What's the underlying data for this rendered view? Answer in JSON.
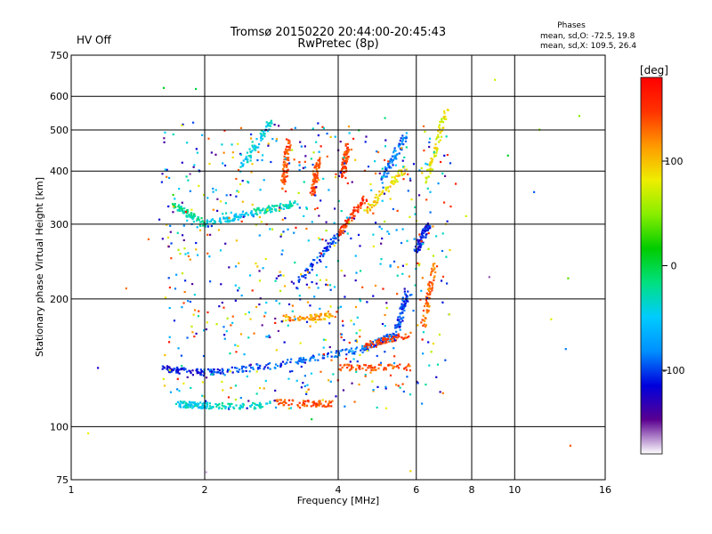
{
  "header": {
    "status": "HV Off",
    "title_line1": "Tromsø 20150220 20:44:00-20:45:43",
    "title_line2": "RwPretec (8p)",
    "stats_title": "Phases",
    "stats_o": "mean, sd,O: -72.5, 19.8",
    "stats_x": "mean, sd,X: 109.5, 26.4"
  },
  "colors": {
    "status": "#dd0000",
    "palette": [
      "#ffffff",
      "#5a0090",
      "#0000dd",
      "#0090ff",
      "#00ccff",
      "#00e080",
      "#00cc00",
      "#88ee00",
      "#eeee00",
      "#ff9900",
      "#ff3300",
      "#ff0000"
    ]
  },
  "chart_data": {
    "type": "scatter",
    "xlabel": "Frequency [MHz]",
    "ylabel": "Stationary phase Virtual Height [km]",
    "x_scale": "log",
    "y_scale": "log",
    "xlim": [
      1,
      16
    ],
    "ylim": [
      75,
      750
    ],
    "x_ticks": [
      1,
      2,
      4,
      6,
      8,
      10,
      16
    ],
    "y_ticks": [
      75,
      100,
      200,
      300,
      400,
      500,
      600,
      750
    ],
    "grid": true,
    "colorbar": {
      "label": "[deg]",
      "range": [
        -180,
        180
      ],
      "ticks": [
        100,
        0,
        -100
      ]
    },
    "traces": [
      {
        "f_start": 1.75,
        "f_end": 2.0,
        "h_start": 113,
        "h_end": 112,
        "phase": -45
      },
      {
        "f_start": 2.0,
        "f_end": 2.8,
        "h_start": 112,
        "h_end": 112,
        "phase": -35
      },
      {
        "f_start": 2.9,
        "f_end": 3.9,
        "h_start": 114,
        "h_end": 113,
        "phase": 140
      },
      {
        "f_start": 1.6,
        "f_end": 2.0,
        "h_start": 137,
        "h_end": 134,
        "phase": -115
      },
      {
        "f_start": 2.0,
        "f_end": 3.0,
        "h_start": 134,
        "h_end": 140,
        "phase": -100
      },
      {
        "f_start": 3.0,
        "f_end": 4.5,
        "h_start": 141,
        "h_end": 152,
        "phase": -90
      },
      {
        "f_start": 4.5,
        "f_end": 5.4,
        "h_start": 152,
        "h_end": 165,
        "phase": -90
      },
      {
        "f_start": 5.4,
        "f_end": 5.7,
        "h_start": 165,
        "h_end": 205,
        "phase": -100
      },
      {
        "f_start": 4.0,
        "f_end": 5.8,
        "h_start": 138,
        "h_end": 138,
        "phase": 140
      },
      {
        "f_start": 4.6,
        "f_end": 5.8,
        "h_start": 155,
        "h_end": 165,
        "phase": 145
      },
      {
        "f_start": 3.0,
        "f_end": 3.9,
        "h_start": 180,
        "h_end": 182,
        "phase": 110
      },
      {
        "f_start": 1.7,
        "f_end": 2.0,
        "h_start": 335,
        "h_end": 300,
        "phase": -20
      },
      {
        "f_start": 2.0,
        "f_end": 2.6,
        "h_start": 300,
        "h_end": 320,
        "phase": -50
      },
      {
        "f_start": 2.6,
        "f_end": 3.2,
        "h_start": 320,
        "h_end": 335,
        "phase": -30
      },
      {
        "f_start": 3.2,
        "f_end": 4.1,
        "h_start": 215,
        "h_end": 290,
        "phase": -100
      },
      {
        "f_start": 4.0,
        "f_end": 4.6,
        "h_start": 285,
        "h_end": 345,
        "phase": 150
      },
      {
        "f_start": 4.6,
        "f_end": 5.7,
        "h_start": 320,
        "h_end": 410,
        "phase": 90
      },
      {
        "f_start": 5.0,
        "f_end": 5.7,
        "h_start": 380,
        "h_end": 490,
        "phase": -90
      },
      {
        "f_start": 3.0,
        "f_end": 3.1,
        "h_start": 360,
        "h_end": 480,
        "phase": 140
      },
      {
        "f_start": 3.5,
        "f_end": 3.6,
        "h_start": 350,
        "h_end": 430,
        "phase": 140
      },
      {
        "f_start": 4.1,
        "f_end": 4.2,
        "h_start": 390,
        "h_end": 460,
        "phase": 140
      },
      {
        "f_start": 2.4,
        "f_end": 2.8,
        "h_start": 400,
        "h_end": 520,
        "phase": -45
      },
      {
        "f_start": 6.3,
        "f_end": 7.0,
        "h_start": 370,
        "h_end": 560,
        "phase": 80
      },
      {
        "f_start": 6.2,
        "f_end": 6.6,
        "h_start": 170,
        "h_end": 240,
        "phase": 130
      },
      {
        "f_start": 6.0,
        "f_end": 6.4,
        "h_start": 260,
        "h_end": 300,
        "phase": -110
      }
    ]
  }
}
